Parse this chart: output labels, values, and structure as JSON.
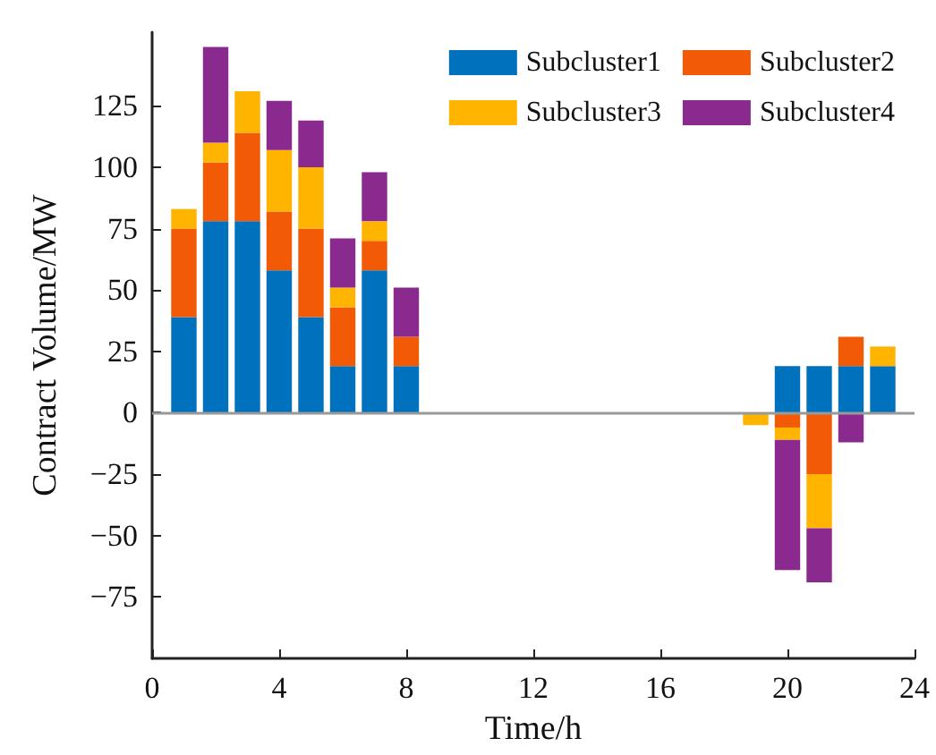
{
  "chart_data": {
    "type": "bar",
    "stacked": true,
    "xlabel": "Time/h",
    "ylabel": "Contract Volume/MW",
    "x": [
      1,
      2,
      3,
      4,
      5,
      6,
      7,
      8,
      19,
      20,
      21,
      22,
      23
    ],
    "series": [
      {
        "name": "Subcluster1",
        "color": "#0072bd",
        "values": [
          39,
          78,
          78,
          58,
          39,
          19,
          58,
          19,
          null,
          19,
          19,
          19,
          19
        ]
      },
      {
        "name": "Subcluster2",
        "color": "#f25a05",
        "values": [
          36,
          24,
          36,
          24,
          36,
          24,
          12,
          12,
          null,
          -6,
          -25,
          12,
          null
        ]
      },
      {
        "name": "Subcluster3",
        "color": "#ffb400",
        "values": [
          8,
          8,
          17,
          25,
          25,
          8,
          8,
          null,
          -5,
          -5,
          -22,
          null,
          8
        ]
      },
      {
        "name": "Subcluster4",
        "color": "#8b2a8e",
        "values": [
          null,
          39,
          null,
          20,
          19,
          20,
          20,
          20,
          null,
          -53,
          -22,
          -12,
          null
        ]
      }
    ],
    "xlim": [
      0,
      24
    ],
    "xticks": [
      0,
      4,
      8,
      12,
      16,
      20,
      24
    ],
    "ylim": [
      -100,
      155
    ],
    "yticks": [
      -75,
      -50,
      -25,
      0,
      25,
      50,
      75,
      100,
      125
    ],
    "ref_lines": [
      {
        "axis": "y",
        "value": 0,
        "color": "#999999"
      }
    ],
    "grid": false,
    "legend": "top right"
  }
}
